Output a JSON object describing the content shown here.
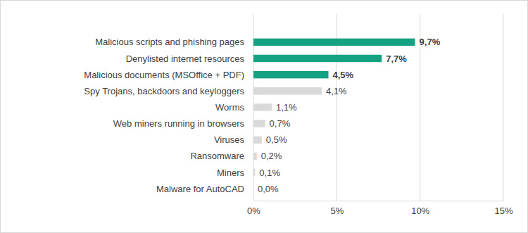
{
  "chart_data": {
    "type": "bar",
    "orientation": "horizontal",
    "categories": [
      "Malicious scripts and phishing pages",
      "Denylisted internet resources",
      "Malicious documents (MSOffice + PDF)",
      "Spy Trojans, backdoors and keyloggers",
      "Worms",
      "Web miners running in browsers",
      "Viruses",
      "Ransomware",
      "Miners",
      "Malware for AutoCAD"
    ],
    "values": [
      9.7,
      7.7,
      4.5,
      4.1,
      1.1,
      0.7,
      0.5,
      0.2,
      0.1,
      0.0
    ],
    "value_labels": [
      "9,7%",
      "7,7%",
      "4,5%",
      "4,1%",
      "1,1%",
      "0,7%",
      "0,5%",
      "0,2%",
      "0,1%",
      "0,0%"
    ],
    "colors": [
      "#14a283",
      "#14a283",
      "#14a283",
      "#d9d9d9",
      "#d9d9d9",
      "#d9d9d9",
      "#d9d9d9",
      "#d9d9d9",
      "#d9d9d9",
      "#d9d9d9"
    ],
    "xlim": [
      0,
      15
    ],
    "xticks": [
      {
        "value": 0,
        "label": "0%"
      },
      {
        "value": 5,
        "label": "5%"
      },
      {
        "value": 10,
        "label": "10%"
      },
      {
        "value": 15,
        "label": "15%"
      }
    ],
    "grid": true,
    "data_labels": true
  }
}
